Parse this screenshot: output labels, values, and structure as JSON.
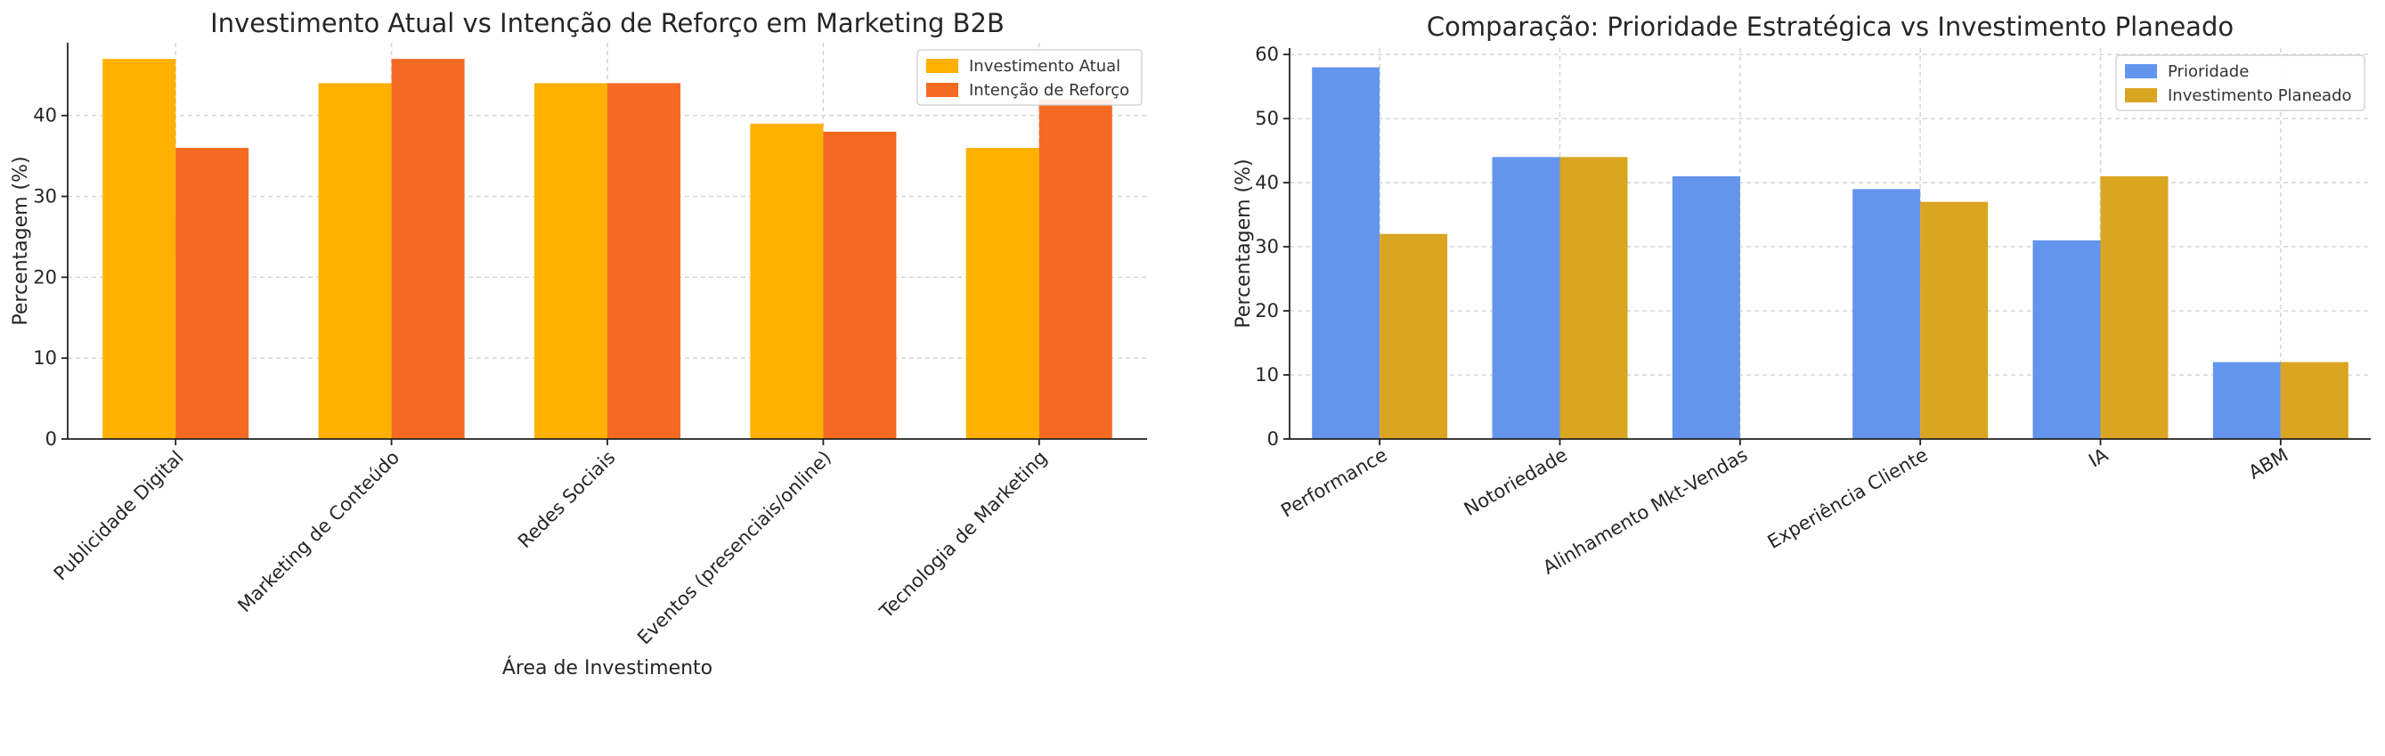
{
  "chart_data": [
    {
      "type": "bar",
      "title": "Investimento Atual vs Intenção de Reforço em Marketing B2B",
      "xlabel": "Área de Investimento",
      "ylabel": "Percentagem (%)",
      "ylim": [
        0,
        49
      ],
      "yticks": [
        0,
        10,
        20,
        30,
        40
      ],
      "grid": true,
      "legend_position": "top-right",
      "categories": [
        "Publicidade Digital",
        "Marketing de Conteúdo",
        "Redes Sociais",
        "Eventos (presenciais/online)",
        "Tecnologia de Marketing"
      ],
      "series": [
        {
          "name": "Investimento Atual",
          "color": "#FFB000",
          "values": [
            47,
            44,
            44,
            39,
            36
          ]
        },
        {
          "name": "Intenção de Reforço",
          "color": "#F46A22",
          "values": [
            36,
            47,
            44,
            38,
            42
          ]
        }
      ]
    },
    {
      "type": "bar",
      "title": "Comparação: Prioridade Estratégica vs Investimento Planeado",
      "xlabel": "",
      "ylabel": "Percentagem (%)",
      "ylim": [
        0,
        61
      ],
      "yticks": [
        0,
        10,
        20,
        30,
        40,
        50,
        60
      ],
      "grid": true,
      "legend_position": "top-right",
      "categories": [
        "Performance",
        "Notoriedade",
        "Alinhamento Mkt-Vendas",
        "Experiência Cliente",
        "IA",
        "ABM"
      ],
      "series": [
        {
          "name": "Prioridade",
          "color": "#6495ED",
          "values": [
            58,
            44,
            41,
            39,
            31,
            12
          ]
        },
        {
          "name": "Investimento Planeado",
          "color": "#DAA520",
          "values": [
            32,
            44,
            0,
            37,
            41,
            12
          ]
        }
      ]
    }
  ]
}
